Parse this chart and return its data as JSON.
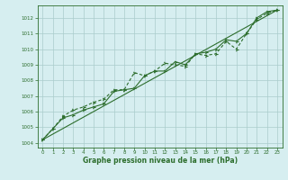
{
  "xlabel": "Graphe pression niveau de la mer (hPa)",
  "background_color": "#d6eef0",
  "grid_color": "#aacccc",
  "line_color": "#2d6e2d",
  "xlim": [
    -0.5,
    23.5
  ],
  "ylim": [
    1003.7,
    1012.8
  ],
  "xticks": [
    0,
    1,
    2,
    3,
    4,
    5,
    6,
    7,
    8,
    9,
    10,
    11,
    12,
    13,
    14,
    15,
    16,
    17,
    18,
    19,
    20,
    21,
    22,
    23
  ],
  "yticks": [
    1004,
    1005,
    1006,
    1007,
    1008,
    1009,
    1010,
    1011,
    1012
  ],
  "series1": [
    [
      0,
      1004.2
    ],
    [
      1,
      1004.9
    ],
    [
      2,
      1005.6
    ],
    [
      3,
      1005.8
    ],
    [
      4,
      1006.1
    ],
    [
      5,
      1006.3
    ],
    [
      6,
      1006.5
    ],
    [
      7,
      1007.3
    ],
    [
      8,
      1007.4
    ],
    [
      9,
      1007.5
    ],
    [
      10,
      1008.3
    ],
    [
      11,
      1008.6
    ],
    [
      12,
      1008.6
    ],
    [
      13,
      1009.2
    ],
    [
      14,
      1009.0
    ],
    [
      15,
      1009.7
    ],
    [
      16,
      1009.8
    ],
    [
      17,
      1010.0
    ],
    [
      18,
      1010.6
    ],
    [
      19,
      1010.5
    ],
    [
      20,
      1011.0
    ],
    [
      21,
      1012.0
    ],
    [
      22,
      1012.4
    ],
    [
      23,
      1012.5
    ]
  ],
  "series2": [
    [
      0,
      1004.2
    ],
    [
      1,
      1004.9
    ],
    [
      2,
      1005.7
    ],
    [
      3,
      1006.1
    ],
    [
      4,
      1006.3
    ],
    [
      5,
      1006.6
    ],
    [
      6,
      1006.8
    ],
    [
      7,
      1007.4
    ],
    [
      8,
      1007.4
    ],
    [
      9,
      1008.5
    ],
    [
      10,
      1008.3
    ],
    [
      11,
      1008.6
    ],
    [
      12,
      1009.1
    ],
    [
      13,
      1009.0
    ],
    [
      14,
      1008.9
    ],
    [
      15,
      1009.7
    ],
    [
      16,
      1009.6
    ],
    [
      17,
      1009.7
    ],
    [
      18,
      1010.5
    ],
    [
      19,
      1010.0
    ],
    [
      20,
      1011.0
    ],
    [
      21,
      1011.9
    ],
    [
      22,
      1012.3
    ],
    [
      23,
      1012.5
    ]
  ],
  "trend_line": [
    [
      0,
      1004.2
    ],
    [
      23,
      1012.5
    ]
  ]
}
